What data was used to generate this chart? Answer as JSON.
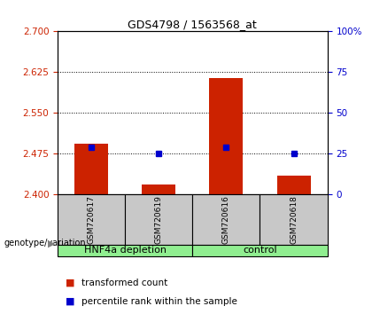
{
  "title": "GDS4798 / 1563568_at",
  "samples": [
    "GSM720617",
    "GSM720619",
    "GSM720616",
    "GSM720618"
  ],
  "red_values": [
    2.493,
    2.418,
    2.615,
    2.435
  ],
  "blue_values": [
    2.487,
    2.475,
    2.487,
    2.475
  ],
  "ylim_left": [
    2.4,
    2.7
  ],
  "ylim_right": [
    0,
    100
  ],
  "yticks_left": [
    2.4,
    2.475,
    2.55,
    2.625,
    2.7
  ],
  "yticks_right": [
    0,
    25,
    50,
    75,
    100
  ],
  "ytick_labels_right": [
    "0",
    "25",
    "50",
    "75",
    "100%"
  ],
  "bar_color": "#CC2200",
  "dot_color": "#0000CC",
  "bar_width": 0.5,
  "background_color": "#ffffff",
  "label_area_color": "#c8c8c8",
  "group_label_color": "#90EE90",
  "group1_name": "HNF4a depletion",
  "group2_name": "control",
  "legend_label1": "transformed count",
  "legend_label2": "percentile rank within the sample",
  "genotype_label": "genotype/variation",
  "title_fontsize": 9,
  "tick_fontsize": 7.5,
  "sample_fontsize": 6.5,
  "group_fontsize": 8,
  "legend_fontsize": 7.5
}
